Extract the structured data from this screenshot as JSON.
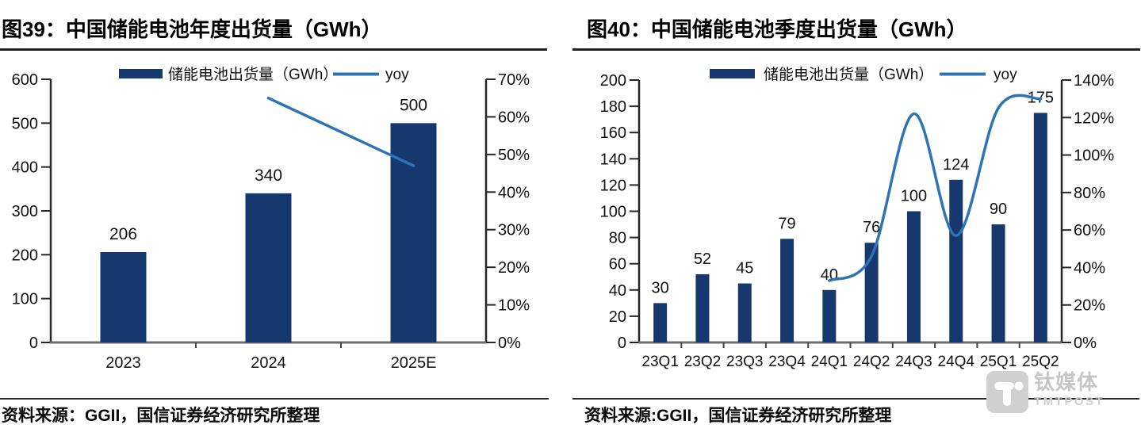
{
  "watermark": {
    "cn": "钛媒体",
    "en": "TMTPOST"
  },
  "colors": {
    "bar": "#17386e",
    "line": "#2e74b5",
    "axis": "#262626",
    "baseline_axis": "#6e6e6e",
    "text": "#111111",
    "watermark_box": "#d0d0d0"
  },
  "chart_data": [
    {
      "type": "bar",
      "title": "图39：中国储能电池年度出货量（GWh）",
      "source": "资料来源：GGII，国信证券经济研究所整理",
      "categories": [
        "2023",
        "2024",
        "2025E"
      ],
      "series": [
        {
          "name": "储能电池出货量（GWh）",
          "type": "bar",
          "axis": "left",
          "values": [
            206,
            340,
            500
          ]
        },
        {
          "name": "yoy",
          "type": "line",
          "axis": "right",
          "values": [
            null,
            65,
            47
          ],
          "unit": "%"
        }
      ],
      "left_axis": {
        "min": 0,
        "max": 600,
        "step": 100
      },
      "right_axis": {
        "min": 0,
        "max": 70,
        "step": 10,
        "suffix": "%"
      },
      "legend_position": "top",
      "grid": false
    },
    {
      "type": "bar",
      "title": "图40：中国储能电池季度出货量（GWh）",
      "source": "资料来源:GGII，国信证券经济研究所整理",
      "categories": [
        "23Q1",
        "23Q2",
        "23Q3",
        "23Q4",
        "24Q1",
        "24Q2",
        "24Q3",
        "24Q4",
        "25Q1",
        "25Q2"
      ],
      "series": [
        {
          "name": "储能电池出货量（GWh）",
          "type": "bar",
          "axis": "left",
          "values": [
            30,
            52,
            45,
            79,
            40,
            76,
            100,
            124,
            90,
            175
          ]
        },
        {
          "name": "yoy",
          "type": "line",
          "axis": "right",
          "values": [
            null,
            null,
            null,
            null,
            33,
            46,
            122,
            57,
            125,
            130
          ],
          "unit": "%"
        }
      ],
      "left_axis": {
        "min": 0,
        "max": 200,
        "step": 20
      },
      "right_axis": {
        "min": 0,
        "max": 140,
        "step": 20,
        "suffix": "%"
      },
      "legend_position": "top",
      "grid": false
    }
  ]
}
